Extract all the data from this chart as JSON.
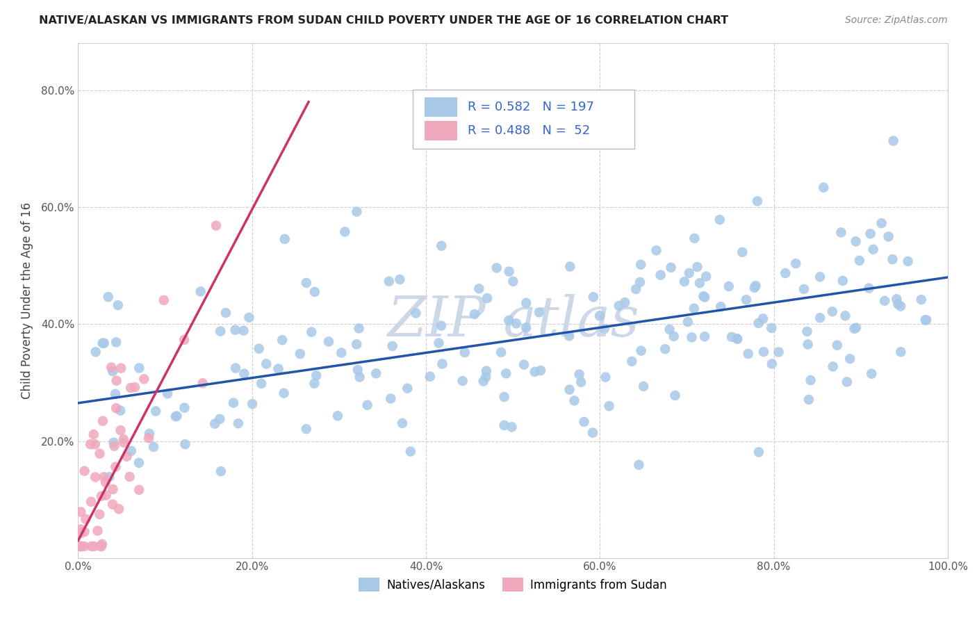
{
  "title": "NATIVE/ALASKAN VS IMMIGRANTS FROM SUDAN CHILD POVERTY UNDER THE AGE OF 16 CORRELATION CHART",
  "source": "Source: ZipAtlas.com",
  "ylabel": "Child Poverty Under the Age of 16",
  "xlabel": "",
  "xlim": [
    0.0,
    1.0
  ],
  "ylim": [
    0.0,
    0.88
  ],
  "xtick_labels": [
    "0.0%",
    "20.0%",
    "40.0%",
    "60.0%",
    "80.0%",
    "100.0%"
  ],
  "ytick_labels": [
    "20.0%",
    "40.0%",
    "60.0%",
    "80.0%"
  ],
  "legend_blue_label": "Natives/Alaskans",
  "legend_pink_label": "Immigrants from Sudan",
  "legend_blue_R": "0.582",
  "legend_blue_N": "197",
  "legend_pink_R": "0.488",
  "legend_pink_N": "52",
  "blue_color": "#a8c8e8",
  "blue_line_color": "#2255aa",
  "pink_color": "#f0a8bc",
  "pink_line_color": "#cc3366",
  "watermark_color": "#ccd8e8",
  "blue_trend_x": [
    0.0,
    1.0
  ],
  "blue_trend_y": [
    0.265,
    0.48
  ],
  "pink_trend_x": [
    0.0,
    0.265
  ],
  "pink_trend_y": [
    0.03,
    0.78
  ],
  "grid_color": "#cccccc",
  "background_color": "#ffffff",
  "legend_R_N_color": "#3366cc",
  "legend_text_color": "#222222"
}
